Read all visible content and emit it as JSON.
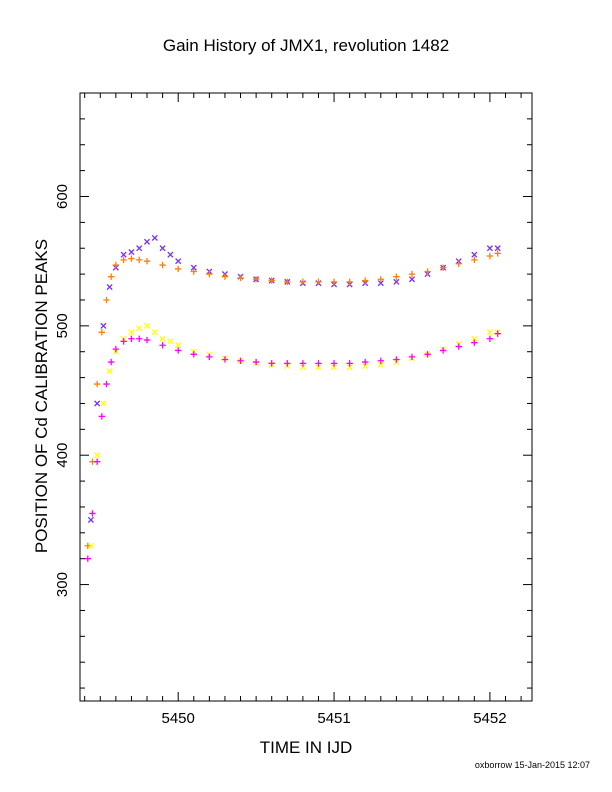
{
  "chart_data": {
    "type": "scatter",
    "title": "Gain History of JMX1, revolution 1482",
    "xlabel": "TIME IN IJD",
    "ylabel": "POSITION OF Cd CALIBRATION PEAKS",
    "xlim": [
      5449.37,
      5452.27
    ],
    "ylim": [
      210,
      680
    ],
    "x_ticks": [
      5450,
      5451,
      5452
    ],
    "y_ticks": [
      300,
      400,
      500,
      600
    ],
    "grid": false,
    "legend": "none",
    "series": [
      {
        "color": "#7b2ff0",
        "marker": "x",
        "x": [
          5449.44,
          5449.48,
          5449.52,
          5449.56,
          5449.6,
          5449.65,
          5449.7,
          5449.75,
          5449.8,
          5449.85,
          5449.9,
          5449.95,
          5450.0,
          5450.1,
          5450.2,
          5450.3,
          5450.4,
          5450.5,
          5450.6,
          5450.7,
          5450.8,
          5450.9,
          5451.0,
          5451.1,
          5451.2,
          5451.3,
          5451.4,
          5451.5,
          5451.6,
          5451.7,
          5451.8,
          5451.9,
          5452.0,
          5452.05
        ],
        "y": [
          350,
          440,
          500,
          530,
          545,
          555,
          557,
          560,
          565,
          568,
          560,
          555,
          550,
          545,
          542,
          540,
          538,
          536,
          535,
          534,
          533,
          533,
          532,
          532,
          533,
          533,
          534,
          536,
          540,
          545,
          550,
          555,
          560,
          560
        ]
      },
      {
        "color": "#ff7f00",
        "marker": "+",
        "x": [
          5449.42,
          5449.45,
          5449.48,
          5449.51,
          5449.54,
          5449.57,
          5449.6,
          5449.65,
          5449.7,
          5449.75,
          5449.8,
          5449.9,
          5450.0,
          5450.1,
          5450.2,
          5450.3,
          5450.4,
          5450.5,
          5450.6,
          5450.7,
          5450.8,
          5450.9,
          5451.0,
          5451.1,
          5451.2,
          5451.3,
          5451.4,
          5451.5,
          5451.6,
          5451.7,
          5451.8,
          5451.9,
          5452.0,
          5452.05
        ],
        "y": [
          330,
          395,
          455,
          495,
          520,
          538,
          547,
          551,
          552,
          551,
          550,
          547,
          544,
          542,
          540,
          538,
          537,
          536,
          535,
          534,
          534,
          534,
          534,
          534,
          535,
          536,
          538,
          540,
          542,
          545,
          548,
          551,
          554,
          556
        ]
      },
      {
        "color": "#ffff00",
        "marker": "x",
        "x": [
          5449.44,
          5449.48,
          5449.52,
          5449.56,
          5449.6,
          5449.65,
          5449.7,
          5449.75,
          5449.8,
          5449.85,
          5449.9,
          5449.95,
          5450.0,
          5450.1,
          5450.2,
          5450.3,
          5450.4,
          5450.5,
          5450.6,
          5450.7,
          5450.8,
          5450.9,
          5451.0,
          5451.1,
          5451.2,
          5451.3,
          5451.4,
          5451.5,
          5451.6,
          5451.7,
          5451.8,
          5451.9,
          5452.0,
          5452.05
        ],
        "y": [
          330,
          400,
          440,
          465,
          480,
          490,
          495,
          498,
          500,
          495,
          490,
          488,
          485,
          480,
          478,
          475,
          473,
          471,
          470,
          469,
          468,
          468,
          468,
          468,
          469,
          470,
          472,
          475,
          478,
          482,
          486,
          490,
          495,
          495
        ]
      },
      {
        "color": "#ff00ff",
        "marker": "+",
        "x": [
          5449.42,
          5449.45,
          5449.48,
          5449.51,
          5449.54,
          5449.57,
          5449.6,
          5449.65,
          5449.7,
          5449.75,
          5449.8,
          5449.9,
          5450.0,
          5450.1,
          5450.2,
          5450.3,
          5450.4,
          5450.5,
          5450.6,
          5450.7,
          5450.8,
          5450.9,
          5451.0,
          5451.1,
          5451.2,
          5451.3,
          5451.4,
          5451.5,
          5451.6,
          5451.7,
          5451.8,
          5451.9,
          5452.0,
          5452.05
        ],
        "y": [
          320,
          355,
          395,
          430,
          455,
          472,
          482,
          488,
          490,
          490,
          489,
          485,
          481,
          478,
          476,
          474,
          473,
          472,
          471,
          471,
          471,
          471,
          471,
          471,
          472,
          473,
          474,
          476,
          478,
          481,
          484,
          487,
          490,
          494
        ]
      }
    ]
  },
  "footer": {
    "stamp": "oxborrow 15-Jan-2015 12:07"
  }
}
